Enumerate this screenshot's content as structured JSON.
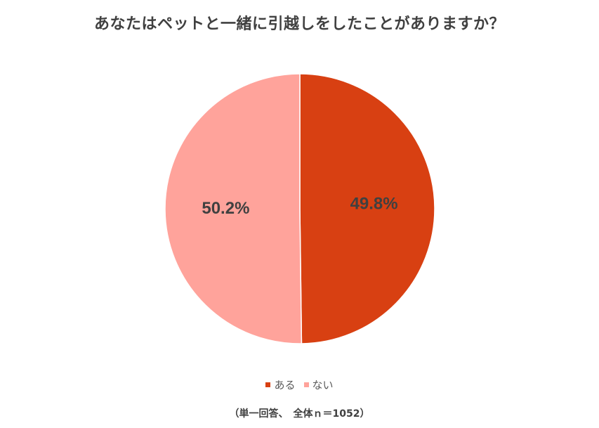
{
  "chart_data": {
    "type": "pie",
    "title": "あなたはペットと一緒に引越しをしたことがありますか？",
    "categories": [
      "ある",
      "ない"
    ],
    "values": [
      49.8,
      50.2
    ],
    "value_labels": [
      "49.8%",
      "50.2%"
    ],
    "colors": [
      "#D84012",
      "#FFA39B"
    ],
    "legend_position": "bottom",
    "footnote": "（単一回答、　全体ｎ＝1052）"
  }
}
